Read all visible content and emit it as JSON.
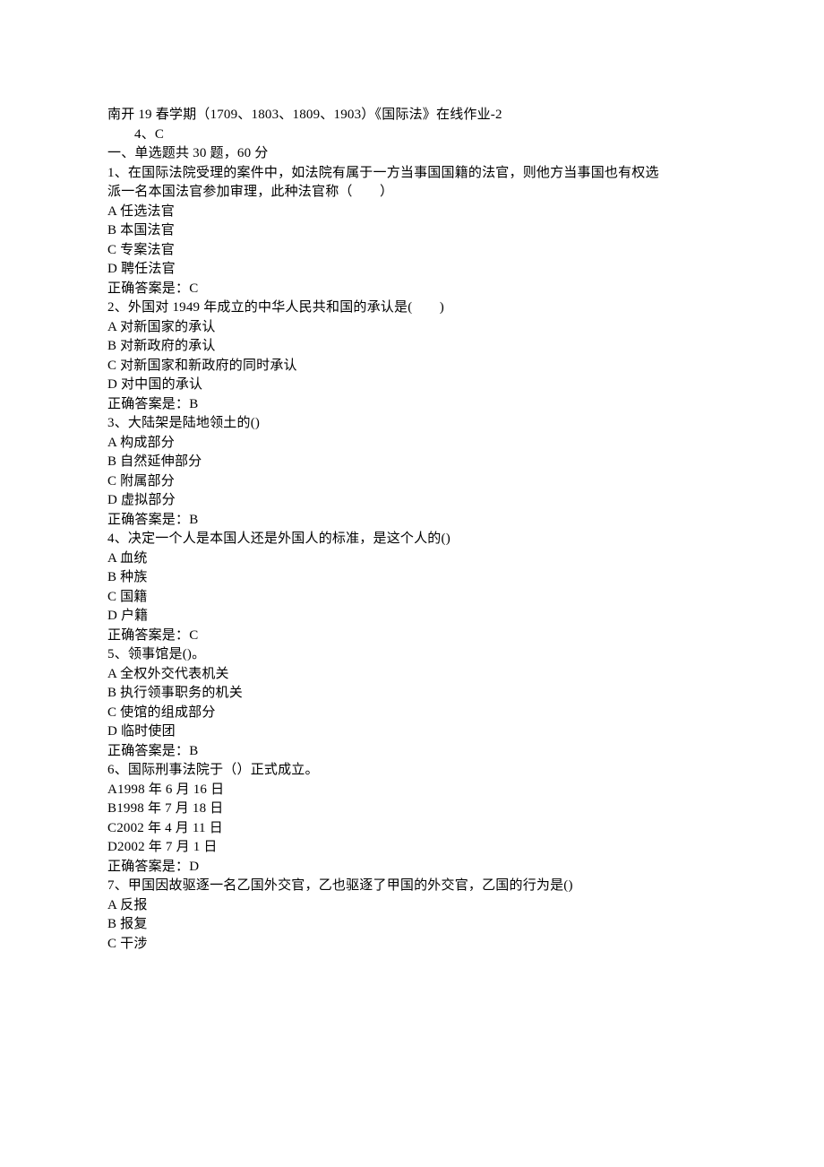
{
  "header": {
    "title": "南开 19 春学期（1709、1803、1809、1903）《国际法》在线作业-2",
    "sub": "4、C",
    "section": "一、单选题共 30 题，60 分"
  },
  "questions": [
    {
      "num": "1",
      "stem_lines": [
        "1、在国际法院受理的案件中，如法院有属于一方当事国国籍的法官，则他方当事国也有权选",
        "派一名本国法官参加审理，此种法官称（　　）"
      ],
      "options": [
        "A 任选法官",
        "B 本国法官",
        "C 专案法官",
        "D 聘任法官"
      ],
      "answer": "正确答案是：C"
    },
    {
      "num": "2",
      "stem_lines": [
        "2、外国对 1949 年成立的中华人民共和国的承认是(　　)"
      ],
      "options": [
        "A 对新国家的承认",
        "B 对新政府的承认",
        "C 对新国家和新政府的同时承认",
        "D 对中国的承认"
      ],
      "answer": "正确答案是：B"
    },
    {
      "num": "3",
      "stem_lines": [
        "3、大陆架是陆地领土的()"
      ],
      "options": [
        "A 构成部分",
        "B 自然延伸部分",
        "C 附属部分",
        "D 虚拟部分"
      ],
      "answer": "正确答案是：B"
    },
    {
      "num": "4",
      "stem_lines": [
        "4、决定一个人是本国人还是外国人的标准，是这个人的()"
      ],
      "options": [
        "A 血统",
        "B 种族",
        "C 国籍",
        "D 户籍"
      ],
      "answer": "正确答案是：C"
    },
    {
      "num": "5",
      "stem_lines": [
        "5、领事馆是()。"
      ],
      "options": [
        "A 全权外交代表机关",
        "B 执行领事职务的机关",
        "C 使馆的组成部分",
        "D 临时使团"
      ],
      "answer": "正确答案是：B"
    },
    {
      "num": "6",
      "stem_lines": [
        "6、国际刑事法院于（）正式成立。"
      ],
      "options": [
        "A1998 年 6 月 16 日",
        "B1998 年 7 月 18 日",
        "C2002 年 4 月 11 日",
        "D2002 年 7 月 1 日"
      ],
      "answer": "正确答案是：D"
    },
    {
      "num": "7",
      "stem_lines": [
        "7、甲国因故驱逐一名乙国外交官，乙也驱逐了甲国的外交官，乙国的行为是()"
      ],
      "options": [
        "A 反报",
        "B 报复",
        "C 干涉"
      ],
      "answer": ""
    }
  ]
}
